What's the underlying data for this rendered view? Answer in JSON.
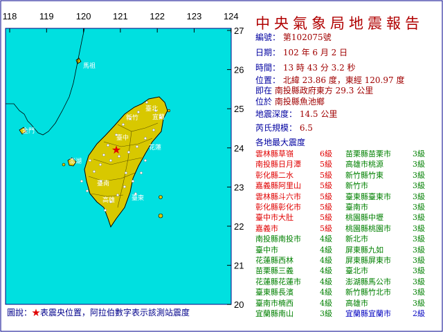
{
  "report": {
    "title": "中央氣象局地震報告",
    "number_label": "編號：",
    "number": "第102075號",
    "date_label": "日期：",
    "date": "102 年 6 月 2 日",
    "time_label": "時間：",
    "time": "13 時 43 分 3.2 秒",
    "position_label": "位置：",
    "position": "北緯 23.86 度，東經 120.97 度",
    "near_label": "即在",
    "near": "南投縣政府東方 29.3 公里",
    "located_label": "位於",
    "located": "南投縣魚池鄉",
    "depth_label": "地震深度：",
    "depth": "14.5 公里",
    "magnitude_label": "芮氏規模：",
    "magnitude": "6.5",
    "max_intensity_header": "各地最大震度"
  },
  "intensity_left": [
    {
      "place": "雲林縣草嶺",
      "level": "6級",
      "color": "#e00000"
    },
    {
      "place": "南投縣日月潭",
      "level": "5級",
      "color": "#e00000"
    },
    {
      "place": "彰化縣二水",
      "level": "5級",
      "color": "#e00000"
    },
    {
      "place": "嘉義縣阿里山",
      "level": "5級",
      "color": "#e00000"
    },
    {
      "place": "雲林縣斗六市",
      "level": "5級",
      "color": "#e00000"
    },
    {
      "place": "彰化縣彰化市",
      "level": "5級",
      "color": "#e00000"
    },
    {
      "place": "臺中市大肚",
      "level": "5級",
      "color": "#e00000"
    },
    {
      "place": "嘉義市",
      "level": "5級",
      "color": "#e00000"
    },
    {
      "place": "南投縣南投市",
      "level": "4級",
      "color": "#008000"
    },
    {
      "place": "臺中市",
      "level": "4級",
      "color": "#008000"
    },
    {
      "place": "花蓮縣西林",
      "level": "4級",
      "color": "#008000"
    },
    {
      "place": "苗栗縣三義",
      "level": "4級",
      "color": "#008000"
    },
    {
      "place": "花蓮縣花蓮市",
      "level": "4級",
      "color": "#008000"
    },
    {
      "place": "臺東縣長濱",
      "level": "4級",
      "color": "#008000"
    },
    {
      "place": "臺南市楠西",
      "level": "4級",
      "color": "#008000"
    },
    {
      "place": "宜蘭縣南山",
      "level": "3級",
      "color": "#008000"
    }
  ],
  "intensity_right": [
    {
      "place": "苗栗縣苗栗市",
      "level": "3級",
      "color": "#008000"
    },
    {
      "place": "高雄市桃源",
      "level": "3級",
      "color": "#008000"
    },
    {
      "place": "新竹縣竹東",
      "level": "3級",
      "color": "#008000"
    },
    {
      "place": "新竹市",
      "level": "3級",
      "color": "#008000"
    },
    {
      "place": "臺東縣臺東市",
      "level": "3級",
      "color": "#008000"
    },
    {
      "place": "臺南市",
      "level": "3級",
      "color": "#008000"
    },
    {
      "place": "桃園縣中壢",
      "level": "3級",
      "color": "#008000"
    },
    {
      "place": "桃園縣桃園市",
      "level": "3級",
      "color": "#008000"
    },
    {
      "place": "新北市",
      "level": "3級",
      "color": "#008000"
    },
    {
      "place": "屏東縣九如",
      "level": "3級",
      "color": "#008000"
    },
    {
      "place": "屏東縣屏東市",
      "level": "3級",
      "color": "#008000"
    },
    {
      "place": "臺北市",
      "level": "3級",
      "color": "#008000"
    },
    {
      "place": "澎湖縣馬公市",
      "level": "3級",
      "color": "#008000"
    },
    {
      "place": "新竹縣竹北市",
      "level": "3級",
      "color": "#008000"
    },
    {
      "place": "高雄市",
      "level": "3級",
      "color": "#008000"
    },
    {
      "place": "宜蘭縣宜蘭市",
      "level": "2級",
      "color": "#0000c0"
    }
  ],
  "map": {
    "lon_ticks": [
      "118",
      "119",
      "120",
      "121",
      "122",
      "123",
      "124"
    ],
    "lat_ticks": [
      "27",
      "26",
      "25",
      "24",
      "23",
      "22",
      "21",
      "20"
    ],
    "place_labels": [
      "馬祖",
      "金門",
      "澎湖",
      "臺中",
      "新竹",
      "臺北",
      "宜蘭",
      "花蓮",
      "臺東",
      "高雄",
      "臺南"
    ],
    "sea_color": "#00e0e0",
    "land_color": "#d8c800"
  },
  "legend": {
    "prefix": "圖說：",
    "star": "★",
    "text": "表震央位置，阿拉伯數字表示該測站震度"
  }
}
